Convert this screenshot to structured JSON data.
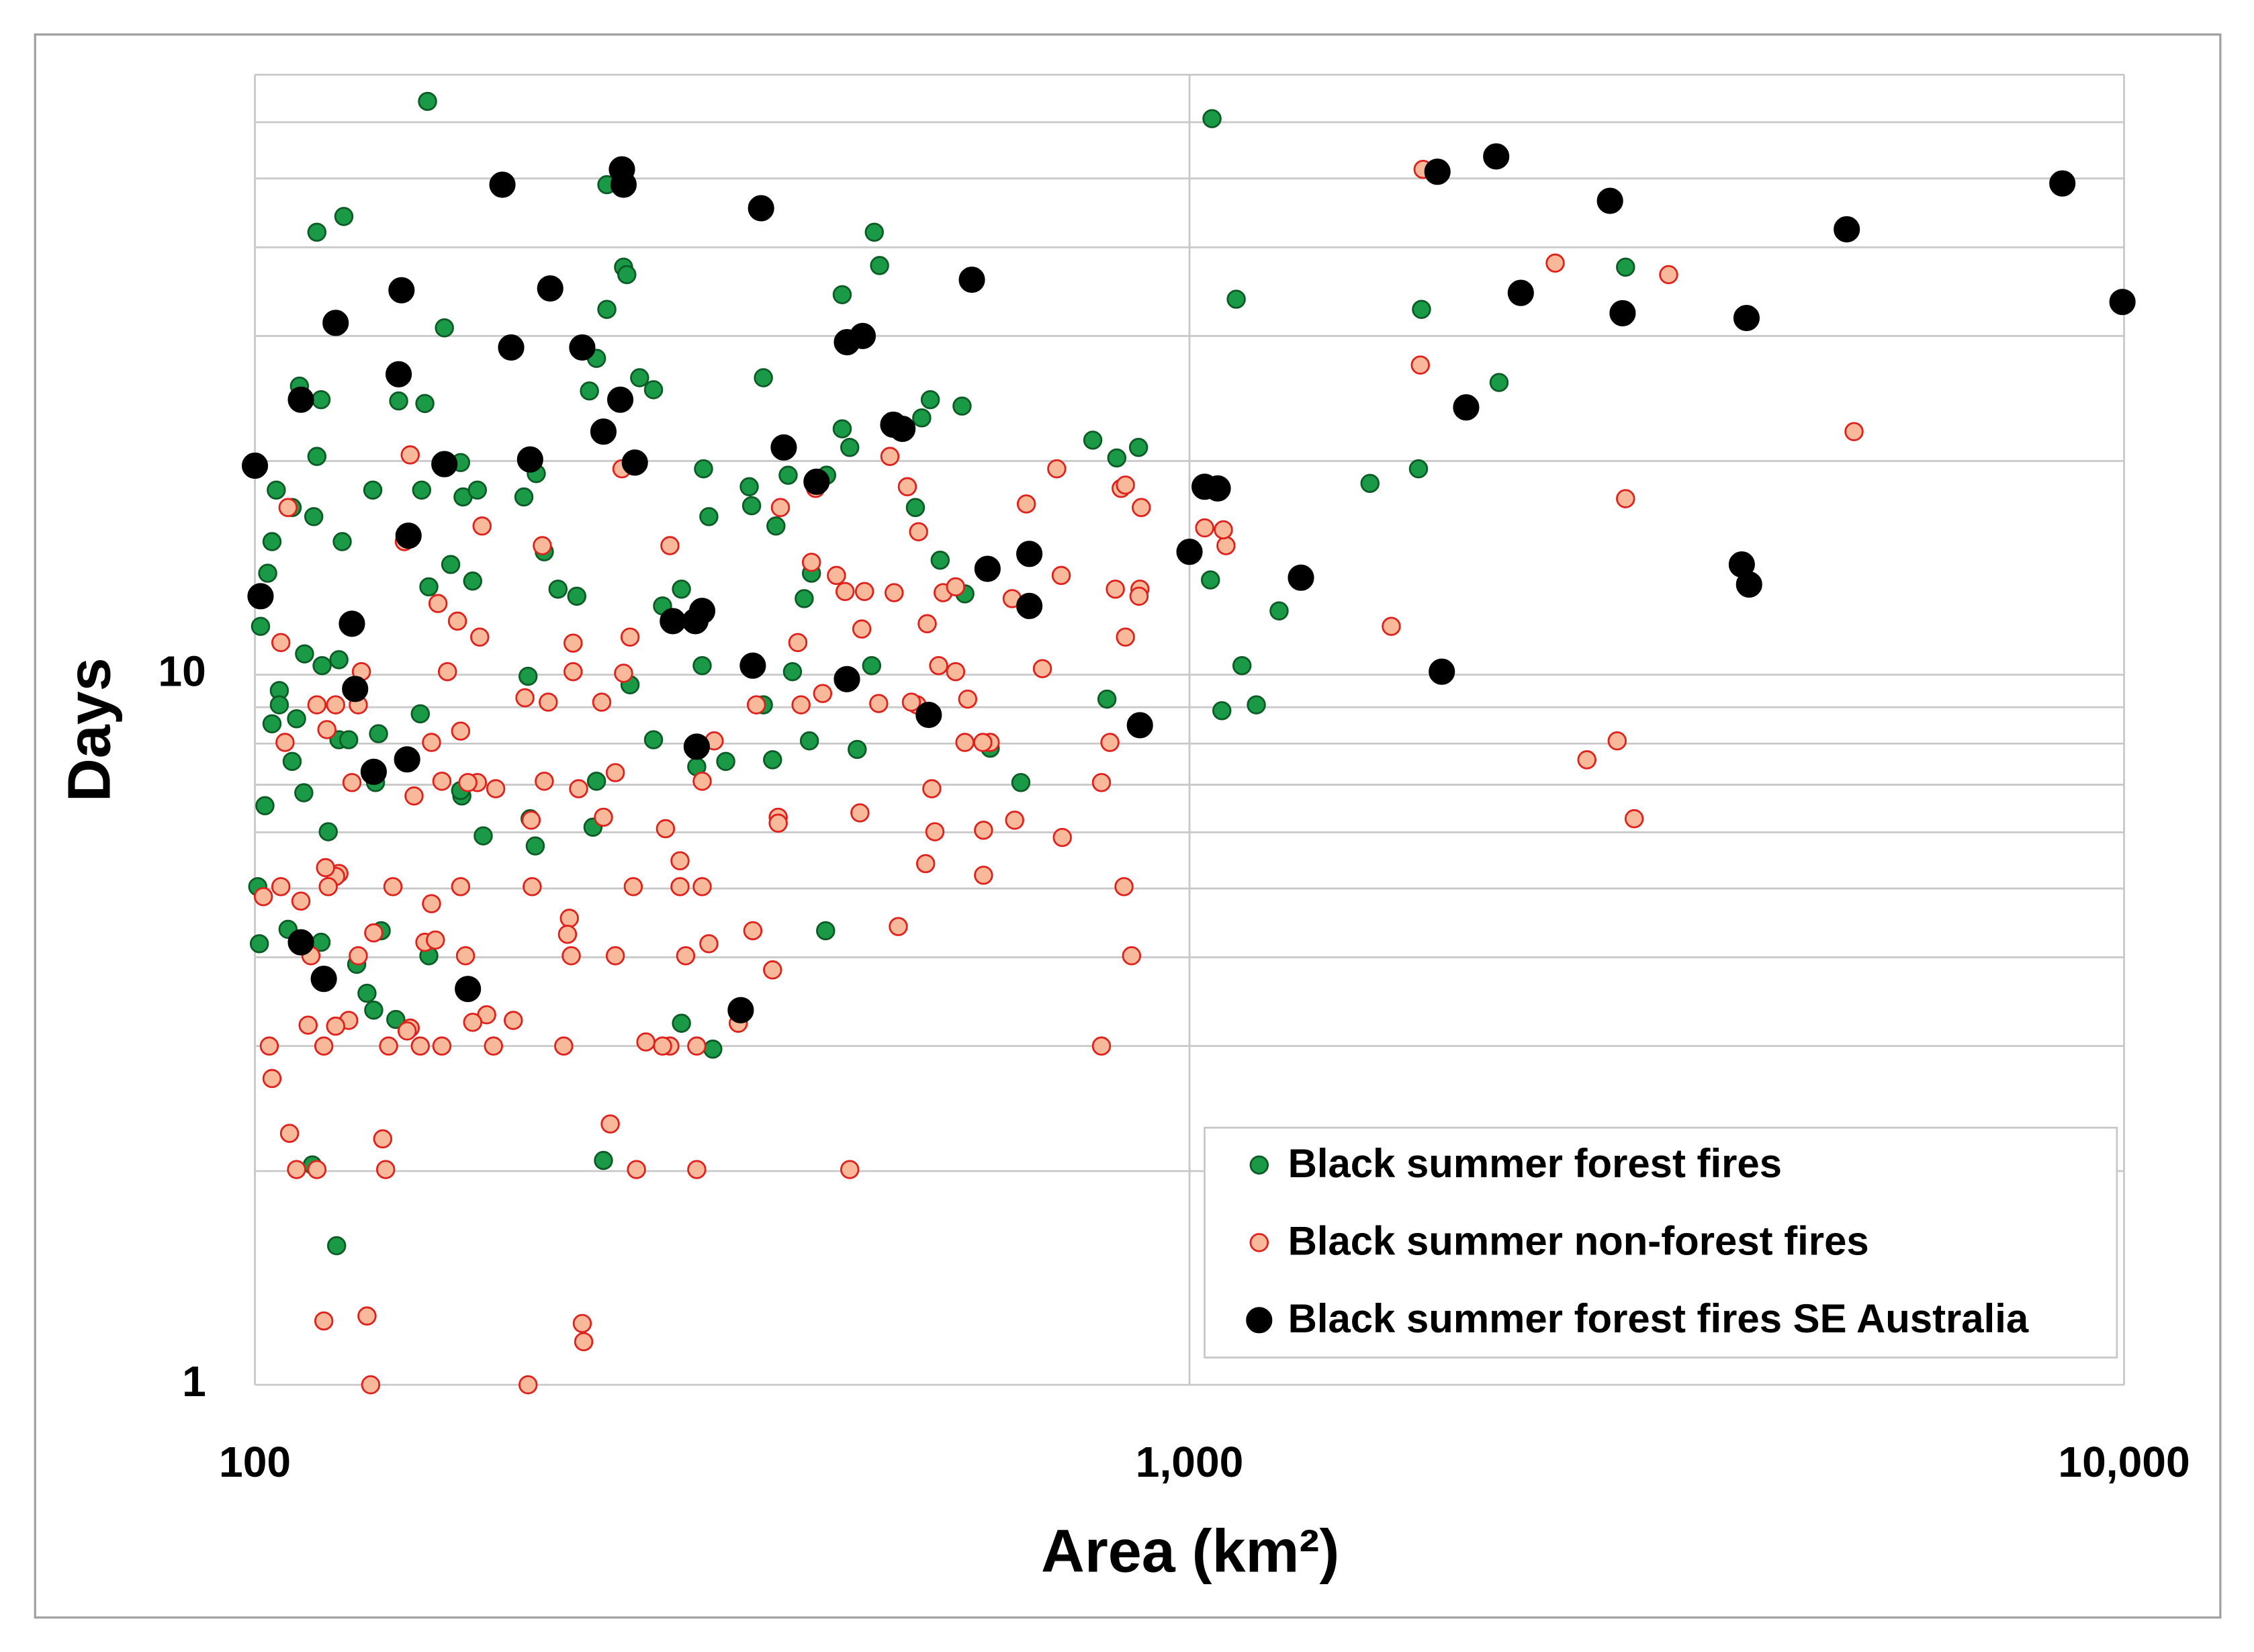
{
  "chart_data": {
    "type": "scatter",
    "x_label": "Area (km²)",
    "y_label": "Days",
    "log_x": true,
    "log_y": true,
    "grid": true,
    "legend": "lower right",
    "xlim": [
      100,
      10000
    ],
    "xticks": [
      100,
      {
        "value": 1000,
        "label": "1,000"
      },
      {
        "value": 10000,
        "label": "10,000"
      }
    ],
    "ylim": [
      1,
      70
    ],
    "yticks": [
      1,
      10
    ],
    "y_minor_gridlines": [
      2,
      3,
      4,
      5,
      6,
      7,
      8,
      9,
      20,
      30,
      40,
      50,
      60,
      70
    ],
    "series": [
      {
        "name": "Black summer forest fires",
        "color": "#1a9a47",
        "edge_color": "#0b5b25",
        "x": [
          153,
          1057,
          116.5,
          124.5,
          238,
          248,
          250,
          460,
          466,
          425,
          238,
          159.5,
          1122,
          1771,
          2928,
          111.6,
          117.7,
          142.5,
          152,
          232,
          228,
          258,
          267,
          350,
          528,
          571,
          2144,
          116.5,
          105.4,
          109.6,
          115.6,
          104.3,
          103.2,
          101.4,
          124,
          133.7,
          150.8,
          166,
          167,
          173,
          194,
          200,
          162,
          153.5,
          171,
          204,
          211,
          221,
          302,
          306,
          338,
          340,
          372,
          361,
          409,
          425,
          433,
          509,
          517,
          541,
          387,
          394,
          286,
          273,
          788,
          836,
          882,
          1560,
          1758,
          1053,
          1247,
          1138,
          1083,
          1179,
          816,
          612,
          660,
          575,
          457,
          376,
          301,
          252,
          350,
          392,
          358,
          319,
          297,
          441,
          267,
          196,
          123,
          126,
          123,
          118,
          113,
          106.2,
          106.2,
          104.3,
          110.8,
          109.6,
          112.8,
          102.5,
          135.6,
          134.6,
          150.3,
          166.5,
          166,
          232,
          230,
          175.5,
          199.5,
          197,
          119.8,
          100.7,
          101.1,
          108.5,
          117.7,
          136.5,
          153.5,
          128.5,
          131.8,
          134,
          141.5,
          408,
          286,
          309,
          236,
          115.2,
          122.3
        ],
        "values": [
          64.2,
          60.7,
          42,
          44.2,
          49,
          37.5,
          36.6,
          42,
          37.7,
          34.3,
          32.7,
          30.8,
          33.8,
          32.7,
          37.5,
          25.5,
          24.4,
          24.3,
          24.1,
          27.9,
          25.1,
          26.2,
          25.2,
          26.2,
          24.4,
          23.9,
          25.8,
          20.3,
          18.2,
          17.2,
          16.7,
          15.4,
          13.9,
          11.7,
          15.4,
          18.2,
          18.2,
          19.9,
          17.8,
          18.2,
          17.8,
          19.2,
          14.3,
          13.3,
          13.55,
          14.9,
          13.2,
          12.9,
          19.5,
          16.7,
          18.4,
          17.3,
          19.1,
          16.2,
          19.1,
          22.2,
          20.9,
          17.2,
          23,
          14.5,
          12.8,
          13.9,
          13.2,
          12.5,
          21.4,
          20.2,
          20.9,
          18.6,
          19.5,
          13.6,
          12.3,
          10.3,
          8.9,
          9.07,
          9.24,
          7.88,
          7.05,
          13,
          10.3,
          10.1,
          10.3,
          9.68,
          9.07,
          8.07,
          7.59,
          7.55,
          7.42,
          7.85,
          8.1,
          9.95,
          8.1,
          8.1,
          10.5,
          10.3,
          10.7,
          9.5,
          9.07,
          8.53,
          8.67,
          7.55,
          6.82,
          6.54,
          8.26,
          7.05,
          8.81,
          6.75,
          6.87,
          7.08,
          6.1,
          5.93,
          5.74,
          6.27,
          6.01,
          5.03,
          4.18,
          4.38,
          4.2,
          4.36,
          4.02,
          3.91,
          3.56,
          3.37,
          3.27,
          4.36,
          3.23,
          2.97,
          2.07,
          2.04,
          1.57
        ]
      },
      {
        "name": "Black summer non-forest fires",
        "color": "#f8b89a",
        "edge_color": "#e0201b",
        "x": [
          1778,
          2462,
          3256,
          1766,
          5141,
          2928,
          1644,
          1094,
          1038,
          721,
          669,
          845,
          888,
          729,
          833,
          885,
          883,
          854,
          646,
          696,
          822,
          805,
          731,
          650,
          602,
          602,
          612,
          601,
          575,
          579,
          562,
          539,
          545,
          562,
          524,
          513,
          499,
          478,
          511,
          504,
          530,
          534,
          522,
          488,
          465,
          444,
          483,
          449,
          446,
          428,
          419,
          394,
          398,
          405,
          384,
          381,
          365,
          344,
          363,
          363,
          358,
          341,
          329,
          310,
          301,
          301,
          306,
          289,
          285,
          285,
          275,
          278,
          297,
          278,
          273,
          262,
          256,
          297,
          240,
          224,
          224.8,
          196,
          433,
          254,
          243,
          243,
          248,
          252,
          247,
          235,
          236,
          222,
          219,
          219,
          217,
          216,
          218,
          214,
          206,
          204,
          203,
          197.5,
          198,
          194.5,
          189,
          181,
          180,
          177,
          173,
          169,
          166,
          168,
          171,
          166,
          164.7,
          175,
          174,
          157,
          160.7,
          158.5,
          154.5,
          154.5,
          152,
          156,
          158.5,
          150.3,
          146.6,
          146.6,
          144.5,
          148,
          145.5,
          140.5,
          139,
          138,
          137,
          134,
          133,
          131.8,
          129,
          129,
          130,
          127,
          126,
          123,
          122,
          122,
          122,
          119,
          119.8,
          119.4,
          118.5,
          118.5,
          116.5,
          116.5,
          114.8,
          114,
          112,
          110.8,
          108.9,
          108.5,
          107.7,
          106.6,
          106.6,
          104.3,
          103.6,
          102.1,
          2868,
          2662,
          2991,
          867,
          805,
          851,
          854,
          1087
        ],
        "values": [
          51.5,
          38,
          36.6,
          27.3,
          22,
          17.7,
          11.7,
          15.2,
          16.1,
          19.5,
          17.4,
          18.3,
          17.2,
          13.8,
          13.2,
          13.2,
          12.9,
          11.3,
          12.8,
          10.2,
          8.03,
          7.05,
          5.9,
          6.24,
          6.04,
          5.22,
          8.03,
          8.03,
          8.03,
          9.24,
          10.1,
          10.3,
          13.05,
          13.3,
          11.8,
          15.9,
          18.4,
          20.3,
          9.07,
          9.15,
          6.91,
          6.01,
          5.42,
          4.42,
          9.11,
          6.39,
          13.05,
          13.1,
          11.6,
          13.1,
          13.8,
          14.4,
          18.3,
          9.41,
          9.07,
          11.1,
          17.2,
          9.07,
          6.3,
          6.18,
          3.84,
          4.36,
          3.23,
          8.07,
          7.08,
          5.03,
          4.18,
          4.02,
          5.47,
          5.03,
          6.07,
          15.2,
          3,
          3,
          3,
          3.04,
          2.01,
          2.01,
          2.33,
          1.22,
          1.15,
          1,
          2.01,
          5.03,
          4.02,
          7.28,
          10.05,
          11.3,
          19.5,
          9.15,
          6.3,
          6.91,
          10.1,
          11.08,
          4.54,
          4.31,
          4.02,
          3,
          9.15,
          7.08,
          15.2,
          6.24,
          5.03,
          9.28,
          3.26,
          6.91,
          3,
          3.32,
          7.05,
          7.05,
          8.33,
          4.02,
          3.24,
          5.03,
          11.9,
          16.2,
          11.3,
          12.6,
          10.1,
          7.08,
          8.03,
          4.76,
          4.2,
          4.23,
          3,
          3,
          3.18,
          20.4,
          15.4,
          6.75,
          3.15,
          5.03,
          3,
          2.01,
          2.22,
          4.33,
          1,
          1.25,
          4.02,
          9.07,
          10.1,
          7.05,
          3.26,
          5.25,
          5.2,
          3.2,
          9.07,
          5.35,
          5.03,
          8.37,
          1.23,
          3,
          9.07,
          2.01,
          4.02,
          3.21,
          4.8,
          2.01,
          2.26,
          17.2,
          8.03,
          11.1,
          5.03,
          2.7,
          3,
          4.87,
          8.07,
          7.59,
          6.27,
          4.02,
          3,
          5.03,
          18.5,
          16
        ]
      },
      {
        "name": "Black summer forest fires SE Australia",
        "color": "#000000",
        "edge_color": "#000000",
        "x": [
          100,
          101.4,
          112,
          112,
          118.5,
          122,
          127,
          128,
          134,
          142.5,
          143.5,
          145.5,
          146,
          159.5,
          169,
          184,
          188,
          197,
          207,
          224,
          236,
          246,
          247,
          248,
          255,
          280,
          296,
          297,
          301,
          331,
          341,
          348,
          368,
          399,
          430,
          430,
          447,
          482,
          493,
          526,
          585,
          608,
          674,
          674,
          885,
          1000,
          1038,
          1072,
          1316,
          1842,
          1862,
          1977,
          2129,
          2262,
          2818,
          2907,
          3899,
          3945,
          3970,
          5050,
          8590,
          9960
        ],
        "values": [
          19.7,
          12.9,
          24.4,
          4.2,
          3.73,
          31.3,
          11.8,
          9.55,
          7.3,
          26.5,
          34.8,
          7.6,
          15.7,
          19.8,
          3.61,
          49,
          28.9,
          20.1,
          35,
          28.9,
          22,
          24.4,
          51.5,
          49,
          19.9,
          11.9,
          11.9,
          7.92,
          12.3,
          3.37,
          10.3,
          45.4,
          20.9,
          18.7,
          9.86,
          29.4,
          30,
          22.5,
          22.2,
          8.78,
          36,
          14.1,
          14.8,
          12.5,
          8.49,
          14.9,
          18.4,
          18.3,
          13.7,
          51.1,
          10.1,
          23.8,
          53.7,
          34.5,
          46.5,
          32.3,
          14.3,
          31.8,
          13.4,
          42.4,
          49.2,
          33.5
        ]
      }
    ]
  }
}
